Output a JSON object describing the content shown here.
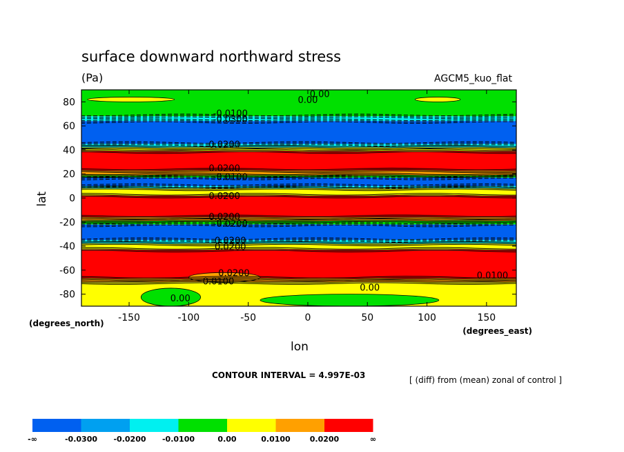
{
  "chart_data": {
    "type": "heatmap",
    "title": "surface downward northward stress",
    "units": "(Pa)",
    "model_label": "AGCM5_kuo_flat",
    "xlabel": "lon",
    "ylabel": "lat",
    "x_units": "(degrees_east)",
    "y_units": "(degrees_north)",
    "xlim": [
      -190,
      175
    ],
    "ylim": [
      -90,
      90
    ],
    "x_ticks": [
      {
        "value": -150,
        "label": "-150"
      },
      {
        "value": -100,
        "label": "-100"
      },
      {
        "value": -50,
        "label": "-50"
      },
      {
        "value": 0,
        "label": "0"
      },
      {
        "value": 50,
        "label": "50"
      },
      {
        "value": 100,
        "label": "100"
      },
      {
        "value": 150,
        "label": "150"
      }
    ],
    "y_ticks": [
      {
        "value": 80,
        "label": "80"
      },
      {
        "value": 60,
        "label": "60"
      },
      {
        "value": 40,
        "label": "40"
      },
      {
        "value": 20,
        "label": "20"
      },
      {
        "value": 0,
        "label": "0"
      },
      {
        "value": -20,
        "label": "-20"
      },
      {
        "value": -40,
        "label": "-40"
      },
      {
        "value": -60,
        "label": "-60"
      },
      {
        "value": -80,
        "label": "-80"
      }
    ],
    "contour_interval_text": "CONTOUR INTERVAL = 4.997E-03",
    "note": "[ (diff) from (mean) zonal of control ]",
    "bands": [
      {
        "lat_top": 90,
        "lat_bottom": 68,
        "level": 3
      },
      {
        "lat_top": 68,
        "lat_bottom": 64,
        "level": 2
      },
      {
        "lat_top": 64,
        "lat_bottom": 45,
        "level": 0
      },
      {
        "lat_top": 45,
        "lat_bottom": 42,
        "level": 2
      },
      {
        "lat_top": 42,
        "lat_bottom": 39,
        "level": 4
      },
      {
        "lat_top": 39,
        "lat_bottom": 23,
        "level": 6
      },
      {
        "lat_top": 23,
        "lat_bottom": 19,
        "level": 5
      },
      {
        "lat_top": 19,
        "lat_bottom": 17,
        "level": 3
      },
      {
        "lat_top": 17,
        "lat_bottom": 10,
        "level": 0
      },
      {
        "lat_top": 10,
        "lat_bottom": 8,
        "level": 2
      },
      {
        "lat_top": 8,
        "lat_bottom": 2,
        "level": 4
      },
      {
        "lat_top": 2,
        "lat_bottom": -16,
        "level": 6
      },
      {
        "lat_top": -16,
        "lat_bottom": -19,
        "level": 5
      },
      {
        "lat_top": -19,
        "lat_bottom": -22,
        "level": 3
      },
      {
        "lat_top": -22,
        "lat_bottom": -35,
        "level": 0
      },
      {
        "lat_top": -35,
        "lat_bottom": -38,
        "level": 2
      },
      {
        "lat_top": -38,
        "lat_bottom": -43,
        "level": 4
      },
      {
        "lat_top": -43,
        "lat_bottom": -67,
        "level": 6
      },
      {
        "lat_top": -67,
        "lat_bottom": -70,
        "level": 5
      },
      {
        "lat_top": -70,
        "lat_bottom": -90,
        "level": 4
      }
    ],
    "patches": [
      {
        "lon_min": -185,
        "lon_max": -112,
        "lat_min": 80,
        "lat_max": 84,
        "level": 4
      },
      {
        "lon_min": 90,
        "lon_max": 128,
        "lat_min": 80,
        "lat_max": 84,
        "level": 4
      },
      {
        "lon_min": -140,
        "lon_max": -90,
        "lat_min": -90,
        "lat_max": -75,
        "level": 3
      },
      {
        "lon_min": -40,
        "lon_max": 110,
        "lat_min": -90,
        "lat_max": -80,
        "level": 3
      },
      {
        "lon_min": -100,
        "lon_max": -40,
        "lat_min": -70,
        "lat_max": -62,
        "level": 5
      }
    ],
    "contour_labels": [
      {
        "text": "0.00",
        "lon": 10,
        "lat": 84
      },
      {
        "text": "0.00",
        "lon": 0,
        "lat": 79
      },
      {
        "text": "-0.0100",
        "lon": -65,
        "lat": 68
      },
      {
        "text": "-0.0300",
        "lon": -65,
        "lat": 63
      },
      {
        "text": "0.0200",
        "lon": -70,
        "lat": 42
      },
      {
        "text": "0.0200",
        "lon": -70,
        "lat": 22
      },
      {
        "text": "-0.0100",
        "lon": -65,
        "lat": 15
      },
      {
        "text": "0.0200",
        "lon": -70,
        "lat": -1
      },
      {
        "text": "0.0200",
        "lon": -70,
        "lat": -18
      },
      {
        "text": "-0.0200",
        "lon": -65,
        "lat": -24
      },
      {
        "text": "0.0200",
        "lon": -65,
        "lat": -38
      },
      {
        "text": "0.0200",
        "lon": -65,
        "lat": -43
      },
      {
        "text": "0.0200",
        "lon": -62,
        "lat": -65
      },
      {
        "text": "0.0100",
        "lon": -75,
        "lat": -72
      },
      {
        "text": "0.0100",
        "lon": 155,
        "lat": -67
      },
      {
        "text": "0.00",
        "lon": 52,
        "lat": -77
      },
      {
        "text": "0.00",
        "lon": -107,
        "lat": -86
      }
    ],
    "legend": {
      "colors": [
        "#0060f0",
        "#00a0f0",
        "#00f0f0",
        "#00e000",
        "#ffff00",
        "#ffa000",
        "#ff0000"
      ],
      "labels": [
        "-∞",
        "-0.0300",
        "-0.0200",
        "-0.0100",
        "0.00",
        "0.0100",
        "0.0200",
        "∞"
      ]
    }
  }
}
